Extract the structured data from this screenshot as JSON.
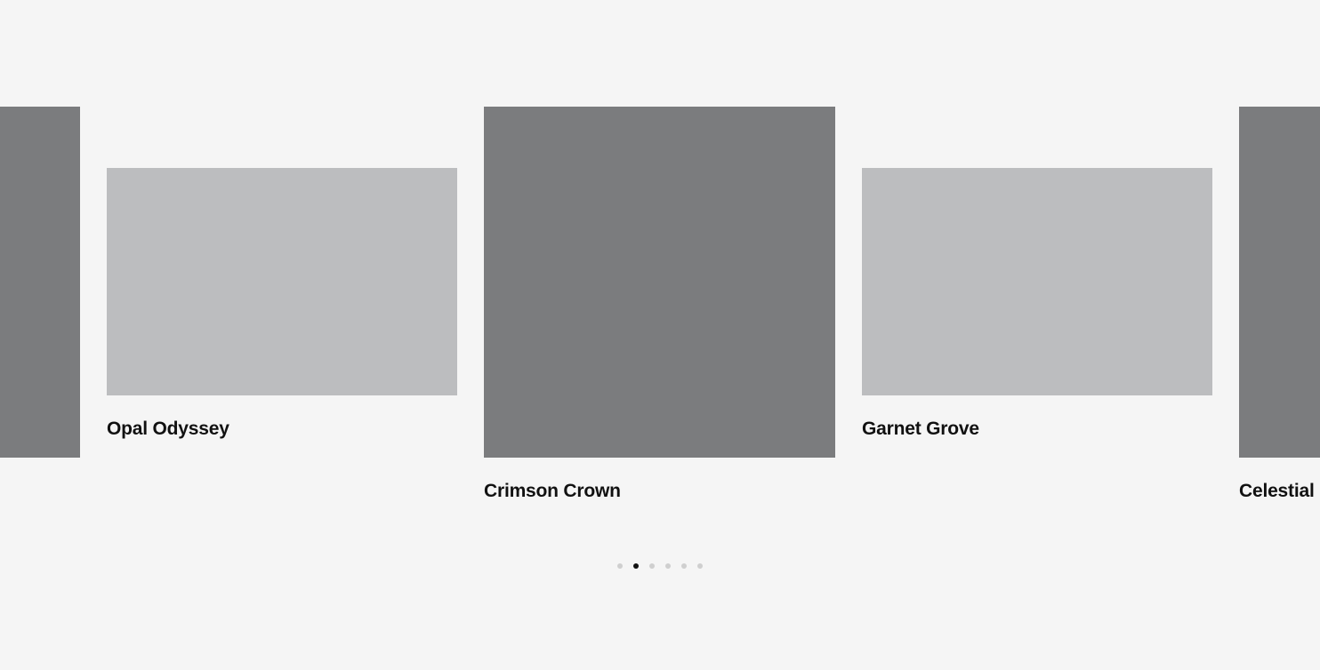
{
  "colors": {
    "background": "#f5f5f5",
    "active_media": "#7b7c7e",
    "inactive_media": "#bcbdbf",
    "dot_active": "#111111",
    "dot_inactive": "#cfcfcf"
  },
  "carousel": {
    "cards": [
      {
        "title": "",
        "state": "active-size"
      },
      {
        "title": "Opal Odyssey",
        "state": "inactive-size"
      },
      {
        "title": "Crimson Crown",
        "state": "active-size"
      },
      {
        "title": "Garnet Grove",
        "state": "inactive-size"
      },
      {
        "title": "Celestial",
        "state": "active-size"
      }
    ],
    "pagination": {
      "count": 6,
      "active_index": 1
    }
  }
}
